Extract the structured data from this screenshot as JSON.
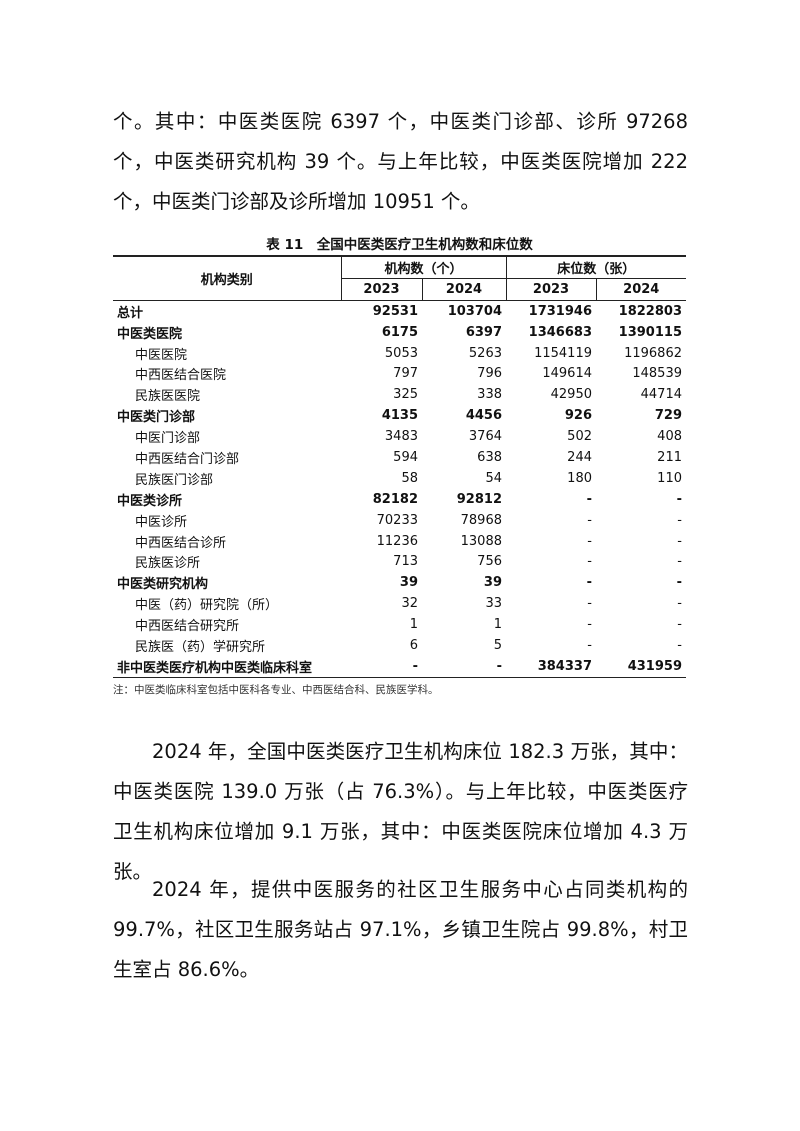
{
  "paragraphs": [
    "个。其中：中医类医院 6397 个，中医类门诊部、诊所 97268 个，中医类研究机构 39 个。与上年比较，中医类医院增加 222 个，中医类门诊部及诊所增加 10951 个。",
    "2024 年，全国中医类医疗卫生机构床位 182.3 万张，其中：中医类医院 139.0 万张（占 76.3%）。与上年比较，中医类医疗卫生机构床位增加 9.1 万张，其中：中医类医院床位增加 4.3 万张。",
    "2024 年，提供中医服务的社区卫生服务中心占同类机构的 99.7%，社区卫生服务站占 97.1%，乡镇卫生院占 99.8%，村卫生室占 86.6%。"
  ],
  "table": {
    "caption": "表 11　全国中医类医疗卫生机构数和床位数",
    "col_category": "机构类别",
    "group1": "机构数（个）",
    "group2": "床位数（张）",
    "years": [
      "2023",
      "2024",
      "2023",
      "2024"
    ],
    "rows": [
      {
        "label": "总计",
        "bold": true,
        "sub": false,
        "values": [
          "92531",
          "103704",
          "1731946",
          "1822803"
        ]
      },
      {
        "label": "中医类医院",
        "bold": true,
        "sub": false,
        "values": [
          "6175",
          "6397",
          "1346683",
          "1390115"
        ]
      },
      {
        "label": "中医医院",
        "bold": false,
        "sub": true,
        "values": [
          "5053",
          "5263",
          "1154119",
          "1196862"
        ]
      },
      {
        "label": "中西医结合医院",
        "bold": false,
        "sub": true,
        "values": [
          "797",
          "796",
          "149614",
          "148539"
        ]
      },
      {
        "label": "民族医医院",
        "bold": false,
        "sub": true,
        "values": [
          "325",
          "338",
          "42950",
          "44714"
        ]
      },
      {
        "label": "中医类门诊部",
        "bold": true,
        "sub": false,
        "values": [
          "4135",
          "4456",
          "926",
          "729"
        ]
      },
      {
        "label": "中医门诊部",
        "bold": false,
        "sub": true,
        "values": [
          "3483",
          "3764",
          "502",
          "408"
        ]
      },
      {
        "label": "中西医结合门诊部",
        "bold": false,
        "sub": true,
        "values": [
          "594",
          "638",
          "244",
          "211"
        ]
      },
      {
        "label": "民族医门诊部",
        "bold": false,
        "sub": true,
        "values": [
          "58",
          "54",
          "180",
          "110"
        ]
      },
      {
        "label": "中医类诊所",
        "bold": true,
        "sub": false,
        "values": [
          "82182",
          "92812",
          "-",
          "-"
        ]
      },
      {
        "label": "中医诊所",
        "bold": false,
        "sub": true,
        "values": [
          "70233",
          "78968",
          "-",
          "-"
        ]
      },
      {
        "label": "中西医结合诊所",
        "bold": false,
        "sub": true,
        "values": [
          "11236",
          "13088",
          "-",
          "-"
        ]
      },
      {
        "label": "民族医诊所",
        "bold": false,
        "sub": true,
        "values": [
          "713",
          "756",
          "-",
          "-"
        ]
      },
      {
        "label": "中医类研究机构",
        "bold": true,
        "sub": false,
        "values": [
          "39",
          "39",
          "-",
          "-"
        ]
      },
      {
        "label": "中医（药）研究院（所）",
        "bold": false,
        "sub": true,
        "values": [
          "32",
          "33",
          "-",
          "-"
        ]
      },
      {
        "label": "中西医结合研究所",
        "bold": false,
        "sub": true,
        "values": [
          "1",
          "1",
          "-",
          "-"
        ]
      },
      {
        "label": "民族医（药）学研究所",
        "bold": false,
        "sub": true,
        "values": [
          "6",
          "5",
          "-",
          "-"
        ]
      },
      {
        "label": "非中医类医疗机构中医类临床科室",
        "bold": true,
        "sub": false,
        "values": [
          "-",
          "-",
          "384337",
          "431959"
        ]
      }
    ],
    "note": "注：中医类临床科室包括中医科各专业、中西医结合科、民族医学科。"
  }
}
